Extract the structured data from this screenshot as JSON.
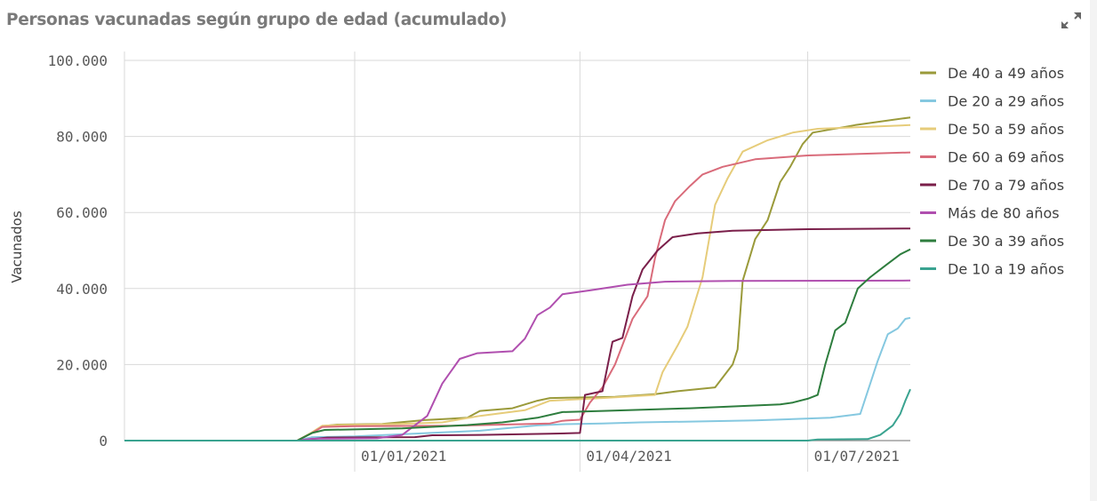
{
  "title": "Personas vacunadas según grupo de edad (acumulado)",
  "expand_icon": "expand-arrows-icon",
  "chart_data": {
    "type": "line",
    "ylabel": "Vacunados",
    "xlabel": "",
    "ylim": [
      0,
      100000
    ],
    "y_ticks": [
      {
        "value": 0,
        "label": "0"
      },
      {
        "value": 20000,
        "label": "20.000"
      },
      {
        "value": 40000,
        "label": "40.000"
      },
      {
        "value": 60000,
        "label": "60.000"
      },
      {
        "value": 80000,
        "label": "80.000"
      },
      {
        "value": 100000,
        "label": "100.000"
      }
    ],
    "xlim": [
      "2020-10-01",
      "2021-08-11"
    ],
    "x_ticks": [
      {
        "value": "2021-01-01",
        "label": "01/01/2021"
      },
      {
        "value": "2021-04-01",
        "label": "01/04/2021"
      },
      {
        "value": "2021-07-01",
        "label": "01/07/2021"
      }
    ],
    "grid": true,
    "legend_position": "right",
    "series": [
      {
        "name": "De 40 a 49 años",
        "color": "#9a9a3a",
        "points": [
          [
            "2020-10-01",
            0
          ],
          [
            "2020-12-09",
            0
          ],
          [
            "2020-12-15",
            2000
          ],
          [
            "2020-12-19",
            3800
          ],
          [
            "2020-12-25",
            4200
          ],
          [
            "2021-01-12",
            4400
          ],
          [
            "2021-01-29",
            5400
          ],
          [
            "2021-02-15",
            6000
          ],
          [
            "2021-02-20",
            7800
          ],
          [
            "2021-03-05",
            8500
          ],
          [
            "2021-03-15",
            10500
          ],
          [
            "2021-03-20",
            11200
          ],
          [
            "2021-04-15",
            11500
          ],
          [
            "2021-05-01",
            12200
          ],
          [
            "2021-05-10",
            13000
          ],
          [
            "2021-05-25",
            14000
          ],
          [
            "2021-06-01",
            20000
          ],
          [
            "2021-06-03",
            24000
          ],
          [
            "2021-06-05",
            42000
          ],
          [
            "2021-06-10",
            53000
          ],
          [
            "2021-06-15",
            58000
          ],
          [
            "2021-06-20",
            68000
          ],
          [
            "2021-06-24",
            72000
          ],
          [
            "2021-06-29",
            78000
          ],
          [
            "2021-07-03",
            81000
          ],
          [
            "2021-07-20",
            83000
          ],
          [
            "2021-08-11",
            85000
          ]
        ]
      },
      {
        "name": "De 20 a 29 años",
        "color": "#85c8e0",
        "points": [
          [
            "2020-10-01",
            0
          ],
          [
            "2020-12-09",
            0
          ],
          [
            "2020-12-15",
            900
          ],
          [
            "2021-01-01",
            1100
          ],
          [
            "2021-02-20",
            2600
          ],
          [
            "2021-03-15",
            4000
          ],
          [
            "2021-03-25",
            4300
          ],
          [
            "2021-04-10",
            4500
          ],
          [
            "2021-04-25",
            4800
          ],
          [
            "2021-05-15",
            5000
          ],
          [
            "2021-06-10",
            5300
          ],
          [
            "2021-07-10",
            6000
          ],
          [
            "2021-07-22",
            7000
          ],
          [
            "2021-07-25",
            13000
          ],
          [
            "2021-07-29",
            21000
          ],
          [
            "2021-08-02",
            28000
          ],
          [
            "2021-08-06",
            29500
          ],
          [
            "2021-08-09",
            32000
          ],
          [
            "2021-08-11",
            32300
          ]
        ]
      },
      {
        "name": "De 50 a 59 años",
        "color": "#e6cc7a",
        "points": [
          [
            "2020-10-01",
            0
          ],
          [
            "2020-12-09",
            0
          ],
          [
            "2020-12-15",
            2200
          ],
          [
            "2020-12-19",
            3900
          ],
          [
            "2020-12-26",
            4100
          ],
          [
            "2021-01-19",
            4400
          ],
          [
            "2021-02-05",
            4800
          ],
          [
            "2021-02-20",
            6500
          ],
          [
            "2021-03-10",
            8000
          ],
          [
            "2021-03-20",
            10500
          ],
          [
            "2021-04-10",
            11200
          ],
          [
            "2021-05-01",
            12000
          ],
          [
            "2021-05-04",
            18000
          ],
          [
            "2021-05-10",
            25000
          ],
          [
            "2021-05-14",
            30000
          ],
          [
            "2021-05-20",
            43000
          ],
          [
            "2021-05-25",
            62000
          ],
          [
            "2021-05-30",
            69000
          ],
          [
            "2021-06-05",
            76000
          ],
          [
            "2021-06-15",
            79000
          ],
          [
            "2021-06-25",
            81000
          ],
          [
            "2021-07-05",
            82000
          ],
          [
            "2021-08-11",
            83000
          ]
        ]
      },
      {
        "name": "De 60 a 69 años",
        "color": "#d96b7a",
        "points": [
          [
            "2020-10-01",
            0
          ],
          [
            "2020-12-09",
            0
          ],
          [
            "2020-12-15",
            2000
          ],
          [
            "2020-12-19",
            3600
          ],
          [
            "2021-01-01",
            3800
          ],
          [
            "2021-02-10",
            3900
          ],
          [
            "2021-03-20",
            4500
          ],
          [
            "2021-03-25",
            5200
          ],
          [
            "2021-04-01",
            5500
          ],
          [
            "2021-04-05",
            10000
          ],
          [
            "2021-04-10",
            14000
          ],
          [
            "2021-04-15",
            20000
          ],
          [
            "2021-04-22",
            32000
          ],
          [
            "2021-04-28",
            38000
          ],
          [
            "2021-05-01",
            48000
          ],
          [
            "2021-05-05",
            58000
          ],
          [
            "2021-05-09",
            63000
          ],
          [
            "2021-05-15",
            67000
          ],
          [
            "2021-05-20",
            70000
          ],
          [
            "2021-05-28",
            72000
          ],
          [
            "2021-06-10",
            74000
          ],
          [
            "2021-07-01",
            75000
          ],
          [
            "2021-08-11",
            75800
          ]
        ]
      },
      {
        "name": "De 70 a 79 años",
        "color": "#7a1f4a",
        "points": [
          [
            "2020-10-01",
            0
          ],
          [
            "2020-12-09",
            0
          ],
          [
            "2020-12-15",
            400
          ],
          [
            "2020-12-21",
            800
          ],
          [
            "2021-01-25",
            900
          ],
          [
            "2021-02-01",
            1400
          ],
          [
            "2021-02-20",
            1500
          ],
          [
            "2021-03-20",
            1800
          ],
          [
            "2021-04-01",
            2000
          ],
          [
            "2021-04-03",
            12000
          ],
          [
            "2021-04-10",
            13000
          ],
          [
            "2021-04-14",
            26000
          ],
          [
            "2021-04-18",
            27000
          ],
          [
            "2021-04-22",
            38000
          ],
          [
            "2021-04-26",
            45000
          ],
          [
            "2021-05-02",
            50000
          ],
          [
            "2021-05-08",
            53500
          ],
          [
            "2021-05-18",
            54500
          ],
          [
            "2021-06-01",
            55200
          ],
          [
            "2021-07-01",
            55600
          ],
          [
            "2021-08-11",
            55800
          ]
        ]
      },
      {
        "name": "Más de 80 años",
        "color": "#b04faf",
        "points": [
          [
            "2020-10-01",
            0
          ],
          [
            "2020-12-09",
            0
          ],
          [
            "2020-12-15",
            500
          ],
          [
            "2021-01-10",
            600
          ],
          [
            "2021-01-20",
            1500
          ],
          [
            "2021-01-30",
            6500
          ],
          [
            "2021-02-05",
            15000
          ],
          [
            "2021-02-12",
            21500
          ],
          [
            "2021-02-19",
            23000
          ],
          [
            "2021-03-05",
            23500
          ],
          [
            "2021-03-10",
            26800
          ],
          [
            "2021-03-15",
            33000
          ],
          [
            "2021-03-20",
            35000
          ],
          [
            "2021-03-25",
            38500
          ],
          [
            "2021-04-05",
            39500
          ],
          [
            "2021-04-20",
            41000
          ],
          [
            "2021-05-05",
            41800
          ],
          [
            "2021-06-01",
            42000
          ],
          [
            "2021-08-11",
            42100
          ]
        ]
      },
      {
        "name": "De 30 a 39 años",
        "color": "#2e7d3e",
        "points": [
          [
            "2020-10-01",
            0
          ],
          [
            "2020-12-09",
            0
          ],
          [
            "2020-12-15",
            2000
          ],
          [
            "2020-12-20",
            2800
          ],
          [
            "2021-01-20",
            3200
          ],
          [
            "2021-02-15",
            4100
          ],
          [
            "2021-03-01",
            4800
          ],
          [
            "2021-03-15",
            6000
          ],
          [
            "2021-03-25",
            7500
          ],
          [
            "2021-04-10",
            7800
          ],
          [
            "2021-05-15",
            8500
          ],
          [
            "2021-06-20",
            9500
          ],
          [
            "2021-06-25",
            10000
          ],
          [
            "2021-07-01",
            11000
          ],
          [
            "2021-07-05",
            12000
          ],
          [
            "2021-07-08",
            20000
          ],
          [
            "2021-07-12",
            29000
          ],
          [
            "2021-07-16",
            31000
          ],
          [
            "2021-07-21",
            40000
          ],
          [
            "2021-07-26",
            43000
          ],
          [
            "2021-08-01",
            46000
          ],
          [
            "2021-08-07",
            49000
          ],
          [
            "2021-08-11",
            50300
          ]
        ]
      },
      {
        "name": "De 10 a 19 años",
        "color": "#3aa390",
        "points": [
          [
            "2020-10-01",
            0
          ],
          [
            "2021-07-01",
            0
          ],
          [
            "2021-07-05",
            300
          ],
          [
            "2021-07-25",
            400
          ],
          [
            "2021-07-30",
            1500
          ],
          [
            "2021-08-04",
            4000
          ],
          [
            "2021-08-07",
            7000
          ],
          [
            "2021-08-09",
            10500
          ],
          [
            "2021-08-11",
            13500
          ]
        ]
      }
    ]
  }
}
